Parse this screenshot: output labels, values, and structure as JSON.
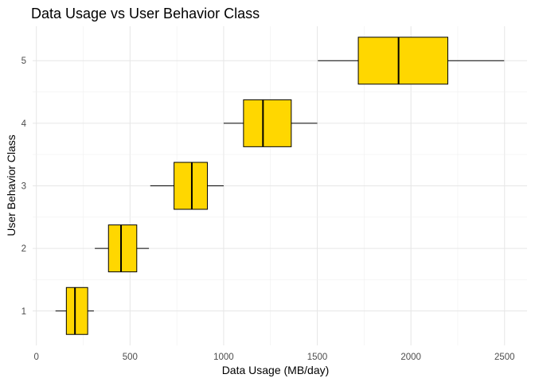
{
  "chart_data": {
    "type": "boxplot",
    "title": "Data Usage vs User Behavior Class",
    "xlabel": "Data Usage (MB/day)",
    "ylabel": "User Behavior Class",
    "xlim": [
      -20,
      2620
    ],
    "ylim": [
      0.45,
      5.55
    ],
    "x_ticks": [
      0,
      500,
      1000,
      1500,
      2000,
      2500
    ],
    "categories": [
      "1",
      "2",
      "3",
      "4",
      "5"
    ],
    "box_color": "#FFD700",
    "grid": true,
    "series": [
      {
        "category": "1",
        "min": 102,
        "q1": 160,
        "median": 206,
        "q3": 274,
        "max": 307
      },
      {
        "category": "2",
        "min": 312,
        "q1": 385,
        "median": 452,
        "q3": 536,
        "max": 601
      },
      {
        "category": "3",
        "min": 608,
        "q1": 735,
        "median": 830,
        "q3": 913,
        "max": 1000
      },
      {
        "category": "4",
        "min": 1000,
        "q1": 1106,
        "median": 1210,
        "q3": 1361,
        "max": 1500
      },
      {
        "category": "5",
        "min": 1503,
        "q1": 1719,
        "median": 1934,
        "q3": 2197,
        "max": 2498
      }
    ]
  }
}
